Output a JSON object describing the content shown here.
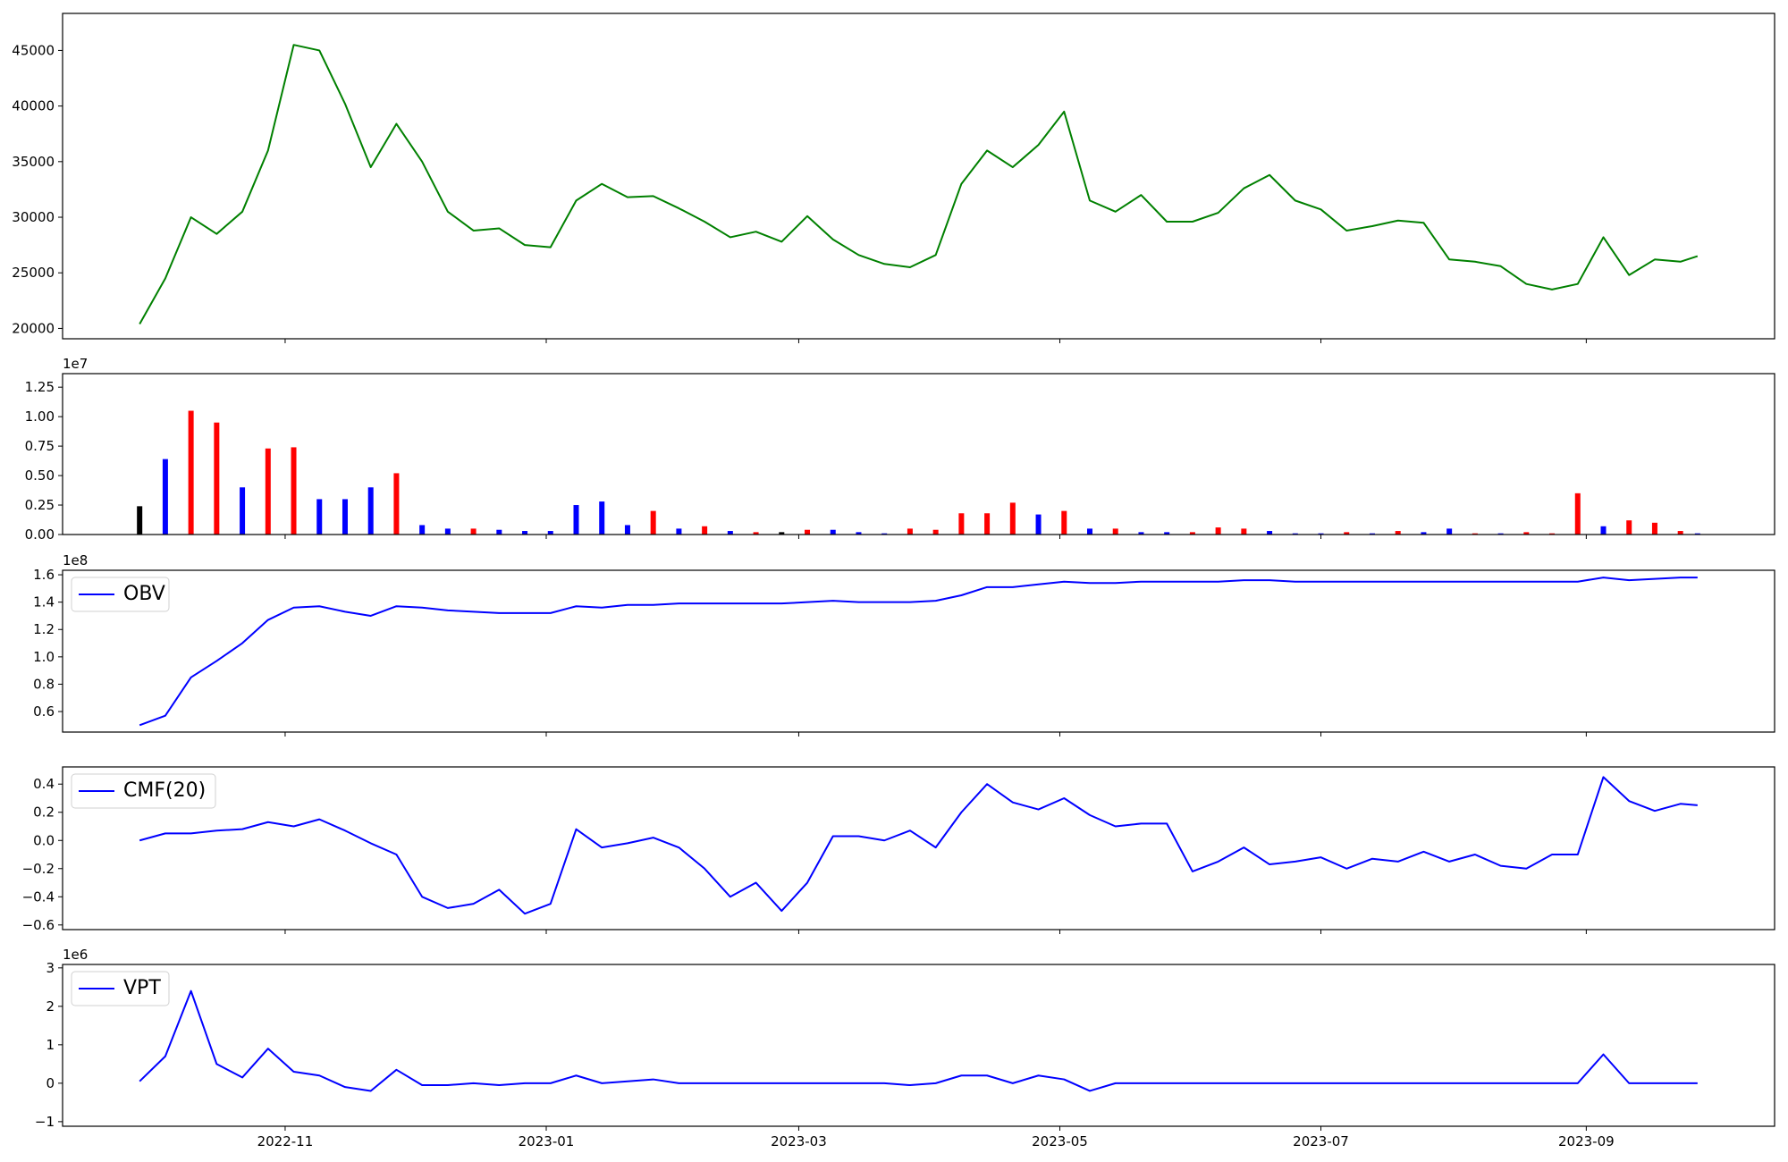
{
  "chart_data": [
    {
      "type": "line",
      "color": "green",
      "x": [
        "2022-09-28",
        "2022-10-04",
        "2022-10-10",
        "2022-10-16",
        "2022-10-22",
        "2022-10-28",
        "2022-11-03",
        "2022-11-09",
        "2022-11-15",
        "2022-11-21",
        "2022-11-27",
        "2022-12-03",
        "2022-12-09",
        "2022-12-15",
        "2022-12-21",
        "2022-12-27",
        "2023-01-02",
        "2023-01-08",
        "2023-01-14",
        "2023-01-20",
        "2023-01-26",
        "2023-02-01",
        "2023-02-07",
        "2023-02-13",
        "2023-02-19",
        "2023-02-25",
        "2023-03-03",
        "2023-03-09",
        "2023-03-15",
        "2023-03-21",
        "2023-03-27",
        "2023-04-02",
        "2023-04-08",
        "2023-04-14",
        "2023-04-20",
        "2023-04-26",
        "2023-05-02",
        "2023-05-08",
        "2023-05-14",
        "2023-05-20",
        "2023-05-26",
        "2023-06-01",
        "2023-06-07",
        "2023-06-13",
        "2023-06-19",
        "2023-06-25",
        "2023-07-01",
        "2023-07-07",
        "2023-07-13",
        "2023-07-19",
        "2023-07-25",
        "2023-07-31",
        "2023-08-06",
        "2023-08-12",
        "2023-08-18",
        "2023-08-24",
        "2023-08-30",
        "2023-09-05",
        "2023-09-11",
        "2023-09-17",
        "2023-09-23",
        "2023-09-27"
      ],
      "values": [
        20400,
        24500,
        30000,
        28500,
        30500,
        36000,
        45500,
        45000,
        40200,
        34500,
        38400,
        35000,
        30500,
        28800,
        29000,
        27500,
        27300,
        31500,
        33000,
        31800,
        31900,
        30800,
        29600,
        28200,
        28700,
        27800,
        30100,
        28000,
        26600,
        25800,
        25500,
        26600,
        33000,
        36000,
        34500,
        36500,
        39500,
        31500,
        30500,
        32000,
        29600,
        29600,
        30400,
        32600,
        33800,
        31500,
        30700,
        28800,
        29200,
        29700,
        29500,
        26200,
        26000,
        25600,
        24000,
        23500,
        24000,
        28200,
        24800,
        26200,
        26000,
        26500
      ],
      "xlim": [
        "2022-09-10",
        "2023-10-15"
      ],
      "ylim": [
        19070,
        48330
      ],
      "yticks": [
        20000,
        25000,
        30000,
        35000,
        40000,
        45000
      ]
    },
    {
      "type": "bar",
      "offset_text": "1e7",
      "x": [
        "2022-09-28",
        "2022-10-04",
        "2022-10-10",
        "2022-10-16",
        "2022-10-22",
        "2022-10-28",
        "2022-11-03",
        "2022-11-09",
        "2022-11-15",
        "2022-11-21",
        "2022-11-27",
        "2022-12-03",
        "2022-12-09",
        "2022-12-15",
        "2022-12-21",
        "2022-12-27",
        "2023-01-02",
        "2023-01-08",
        "2023-01-14",
        "2023-01-20",
        "2023-01-26",
        "2023-02-01",
        "2023-02-07",
        "2023-02-13",
        "2023-02-19",
        "2023-02-25",
        "2023-03-03",
        "2023-03-09",
        "2023-03-15",
        "2023-03-21",
        "2023-03-27",
        "2023-04-02",
        "2023-04-08",
        "2023-04-14",
        "2023-04-20",
        "2023-04-26",
        "2023-05-02",
        "2023-05-08",
        "2023-05-14",
        "2023-05-20",
        "2023-05-26",
        "2023-06-01",
        "2023-06-07",
        "2023-06-13",
        "2023-06-19",
        "2023-06-25",
        "2023-07-01",
        "2023-07-07",
        "2023-07-13",
        "2023-07-19",
        "2023-07-25",
        "2023-07-31",
        "2023-08-06",
        "2023-08-12",
        "2023-08-18",
        "2023-08-24",
        "2023-08-30",
        "2023-09-05",
        "2023-09-11",
        "2023-09-17",
        "2023-09-23",
        "2023-09-27"
      ],
      "values": [
        0.24,
        0.64,
        1.05,
        0.95,
        0.4,
        0.73,
        0.74,
        0.3,
        0.3,
        0.4,
        0.52,
        0.08,
        0.05,
        0.05,
        0.04,
        0.03,
        0.03,
        0.25,
        0.28,
        0.08,
        0.2,
        0.05,
        0.07,
        0.03,
        0.02,
        0.02,
        0.04,
        0.04,
        0.02,
        0.01,
        0.05,
        0.04,
        0.18,
        0.18,
        0.27,
        0.17,
        0.2,
        0.05,
        0.05,
        0.02,
        0.02,
        0.02,
        0.06,
        0.05,
        0.03,
        0.01,
        0.01,
        0.02,
        0.01,
        0.03,
        0.02,
        0.05,
        0.01,
        0.01,
        0.02,
        0.01,
        0.35,
        0.07,
        0.12,
        0.1,
        0.03,
        0.01
      ],
      "colors": [
        "black",
        "blue",
        "red",
        "red",
        "blue",
        "red",
        "red",
        "blue",
        "blue",
        "blue",
        "red",
        "blue",
        "blue",
        "red",
        "blue",
        "blue",
        "blue",
        "blue",
        "blue",
        "blue",
        "red",
        "blue",
        "red",
        "blue",
        "red",
        "black",
        "red",
        "blue",
        "blue",
        "blue",
        "red",
        "red",
        "red",
        "red",
        "red",
        "blue",
        "red",
        "blue",
        "red",
        "blue",
        "blue",
        "red",
        "red",
        "red",
        "blue",
        "blue",
        "blue",
        "red",
        "blue",
        "red",
        "blue",
        "blue",
        "red",
        "blue",
        "red",
        "red",
        "red",
        "blue",
        "red",
        "red",
        "red",
        "blue"
      ],
      "xlim": [
        "2022-09-10",
        "2023-10-15"
      ],
      "ylim": [
        0,
        1.365
      ],
      "yticks": [
        {
          "value": 0,
          "label": "0.00"
        },
        0.25,
        {
          "value": 0.5,
          "label": "0.50"
        },
        0.75,
        {
          "value": 1,
          "label": "1.00"
        },
        1.25
      ]
    },
    {
      "type": "line",
      "offset_text": "1e8",
      "legend": "upper left",
      "x": [
        "2022-09-28",
        "2022-10-04",
        "2022-10-10",
        "2022-10-16",
        "2022-10-22",
        "2022-10-28",
        "2022-11-03",
        "2022-11-09",
        "2022-11-15",
        "2022-11-21",
        "2022-11-27",
        "2022-12-03",
        "2022-12-09",
        "2022-12-15",
        "2022-12-21",
        "2022-12-27",
        "2023-01-02",
        "2023-01-08",
        "2023-01-14",
        "2023-01-20",
        "2023-01-26",
        "2023-02-01",
        "2023-02-07",
        "2023-02-13",
        "2023-02-19",
        "2023-02-25",
        "2023-03-03",
        "2023-03-09",
        "2023-03-15",
        "2023-03-21",
        "2023-03-27",
        "2023-04-02",
        "2023-04-08",
        "2023-04-14",
        "2023-04-20",
        "2023-04-26",
        "2023-05-02",
        "2023-05-08",
        "2023-05-14",
        "2023-05-20",
        "2023-05-26",
        "2023-06-01",
        "2023-06-07",
        "2023-06-13",
        "2023-06-19",
        "2023-06-25",
        "2023-07-01",
        "2023-07-07",
        "2023-07-13",
        "2023-07-19",
        "2023-07-25",
        "2023-07-31",
        "2023-08-06",
        "2023-08-12",
        "2023-08-18",
        "2023-08-24",
        "2023-08-30",
        "2023-09-05",
        "2023-09-11",
        "2023-09-17",
        "2023-09-23",
        "2023-09-27"
      ],
      "series": [
        {
          "name": "OBV",
          "color": "blue",
          "values": [
            0.5,
            0.57,
            0.85,
            0.97,
            1.1,
            1.27,
            1.36,
            1.37,
            1.33,
            1.3,
            1.37,
            1.36,
            1.34,
            1.33,
            1.32,
            1.32,
            1.32,
            1.37,
            1.36,
            1.38,
            1.38,
            1.39,
            1.39,
            1.39,
            1.39,
            1.39,
            1.4,
            1.41,
            1.4,
            1.4,
            1.4,
            1.41,
            1.45,
            1.51,
            1.51,
            1.53,
            1.55,
            1.54,
            1.54,
            1.55,
            1.55,
            1.55,
            1.55,
            1.56,
            1.56,
            1.55,
            1.55,
            1.55,
            1.55,
            1.55,
            1.55,
            1.55,
            1.55,
            1.55,
            1.55,
            1.55,
            1.55,
            1.58,
            1.56,
            1.57,
            1.58,
            1.58
          ]
        }
      ],
      "xlim": [
        "2022-09-10",
        "2023-10-15"
      ],
      "ylim": [
        0.45,
        1.633
      ],
      "yticks": [
        0.6,
        0.8,
        {
          "value": 1,
          "label": "1.0"
        },
        1.2,
        1.4,
        1.6
      ]
    },
    {
      "type": "line",
      "legend": "upper left",
      "x": [
        "2022-09-28",
        "2022-10-04",
        "2022-10-10",
        "2022-10-16",
        "2022-10-22",
        "2022-10-28",
        "2022-11-03",
        "2022-11-09",
        "2022-11-15",
        "2022-11-21",
        "2022-11-27",
        "2022-12-03",
        "2022-12-09",
        "2022-12-15",
        "2022-12-21",
        "2022-12-27",
        "2023-01-02",
        "2023-01-08",
        "2023-01-14",
        "2023-01-20",
        "2023-01-26",
        "2023-02-01",
        "2023-02-07",
        "2023-02-13",
        "2023-02-19",
        "2023-02-25",
        "2023-03-03",
        "2023-03-09",
        "2023-03-15",
        "2023-03-21",
        "2023-03-27",
        "2023-04-02",
        "2023-04-08",
        "2023-04-14",
        "2023-04-20",
        "2023-04-26",
        "2023-05-02",
        "2023-05-08",
        "2023-05-14",
        "2023-05-20",
        "2023-05-26",
        "2023-06-01",
        "2023-06-07",
        "2023-06-13",
        "2023-06-19",
        "2023-06-25",
        "2023-07-01",
        "2023-07-07",
        "2023-07-13",
        "2023-07-19",
        "2023-07-25",
        "2023-07-31",
        "2023-08-06",
        "2023-08-12",
        "2023-08-18",
        "2023-08-24",
        "2023-08-30",
        "2023-09-05",
        "2023-09-11",
        "2023-09-17",
        "2023-09-23",
        "2023-09-27"
      ],
      "series": [
        {
          "name": "CMF(20)",
          "color": "blue",
          "values": [
            0,
            0.05,
            0.05,
            0.07,
            0.08,
            0.13,
            0.1,
            0.15,
            0.07,
            -0.02,
            -0.1,
            -0.4,
            -0.48,
            -0.45,
            -0.35,
            -0.52,
            -0.45,
            0.08,
            -0.05,
            -0.02,
            0.02,
            -0.05,
            -0.2,
            -0.4,
            -0.3,
            -0.5,
            -0.3,
            0.03,
            0.03,
            0,
            0.07,
            -0.05,
            0.2,
            0.4,
            0.27,
            0.22,
            0.3,
            0.18,
            0.1,
            0.12,
            0.12,
            -0.22,
            -0.15,
            -0.05,
            -0.17,
            -0.15,
            -0.12,
            -0.2,
            -0.13,
            -0.15,
            -0.08,
            -0.15,
            -0.1,
            -0.18,
            -0.2,
            -0.1,
            -0.1,
            0.45,
            0.28,
            0.21,
            0.26,
            0.25
          ]
        }
      ],
      "xlim": [
        "2022-09-10",
        "2023-10-15"
      ],
      "ylim": [
        -0.633,
        0.522
      ],
      "yticks": [
        {
          "value": -0.6,
          "label": "−0.6"
        },
        {
          "value": -0.4,
          "label": "−0.4"
        },
        {
          "value": -0.2,
          "label": "−0.2"
        },
        {
          "value": 0,
          "label": "0.0"
        },
        0.2,
        0.4
      ]
    },
    {
      "type": "line",
      "offset_text": "1e6",
      "legend": "upper left",
      "x": [
        "2022-09-28",
        "2022-10-04",
        "2022-10-10",
        "2022-10-16",
        "2022-10-22",
        "2022-10-28",
        "2022-11-03",
        "2022-11-09",
        "2022-11-15",
        "2022-11-21",
        "2022-11-27",
        "2022-12-03",
        "2022-12-09",
        "2022-12-15",
        "2022-12-21",
        "2022-12-27",
        "2023-01-02",
        "2023-01-08",
        "2023-01-14",
        "2023-01-20",
        "2023-01-26",
        "2023-02-01",
        "2023-02-07",
        "2023-02-13",
        "2023-02-19",
        "2023-02-25",
        "2023-03-03",
        "2023-03-09",
        "2023-03-15",
        "2023-03-21",
        "2023-03-27",
        "2023-04-02",
        "2023-04-08",
        "2023-04-14",
        "2023-04-20",
        "2023-04-26",
        "2023-05-02",
        "2023-05-08",
        "2023-05-14",
        "2023-05-20",
        "2023-05-26",
        "2023-06-01",
        "2023-06-07",
        "2023-06-13",
        "2023-06-19",
        "2023-06-25",
        "2023-07-01",
        "2023-07-07",
        "2023-07-13",
        "2023-07-19",
        "2023-07-25",
        "2023-07-31",
        "2023-08-06",
        "2023-08-12",
        "2023-08-18",
        "2023-08-24",
        "2023-08-30",
        "2023-09-05",
        "2023-09-11",
        "2023-09-17",
        "2023-09-23",
        "2023-09-27"
      ],
      "series": [
        {
          "name": "VPT",
          "color": "blue",
          "values": [
            0.05,
            0.7,
            2.4,
            0.5,
            0.15,
            0.9,
            0.3,
            0.2,
            -0.1,
            -0.2,
            0.35,
            -0.05,
            -0.05,
            0,
            -0.05,
            0,
            0,
            0.2,
            0,
            0.05,
            0.1,
            0,
            0,
            0,
            0,
            0,
            0,
            0,
            0,
            0,
            -0.05,
            0,
            0.2,
            0.2,
            0,
            0.2,
            0.1,
            -0.2,
            0,
            0,
            0,
            0,
            0,
            0,
            0,
            0,
            0,
            0,
            0,
            0,
            0,
            0,
            0,
            0,
            0,
            0,
            0,
            0.75,
            0,
            0,
            0,
            0
          ]
        }
      ],
      "xlim": [
        "2022-09-10",
        "2023-10-15"
      ],
      "ylim": [
        -1.119,
        3.089
      ],
      "yticks": [
        {
          "value": -1,
          "label": "−1"
        },
        0,
        1,
        2,
        3
      ],
      "xticks": [
        {
          "value": "2022-11-01",
          "label": "2022-11"
        },
        {
          "value": "2023-01-01",
          "label": "2023-01"
        },
        {
          "value": "2023-03-01",
          "label": "2023-03"
        },
        {
          "value": "2023-05-01",
          "label": "2023-05"
        },
        {
          "value": "2023-07-01",
          "label": "2023-07"
        },
        {
          "value": "2023-09-01",
          "label": "2023-09"
        }
      ]
    }
  ]
}
